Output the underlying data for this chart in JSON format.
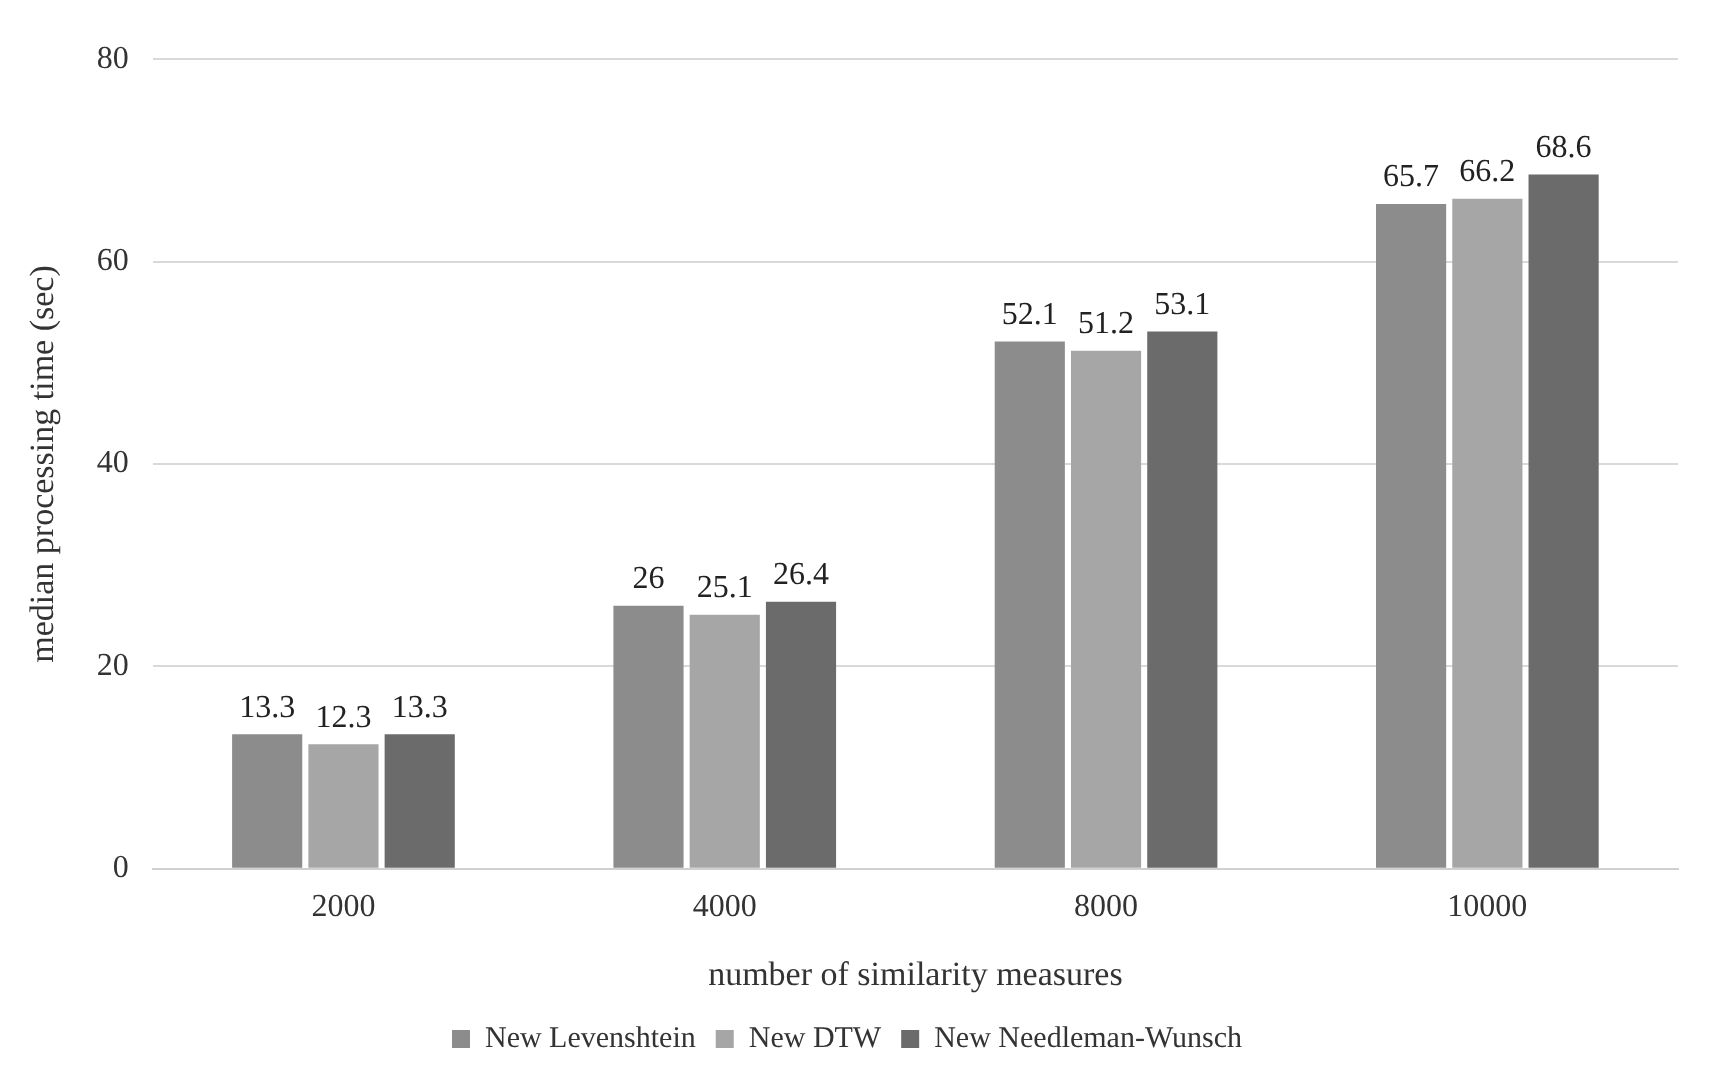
{
  "chart_data": {
    "type": "bar",
    "xlabel": "number of similarity measures",
    "ylabel": "median processing time (sec)",
    "categories": [
      "2000",
      "4000",
      "8000",
      "10000"
    ],
    "series": [
      {
        "name": "New Levenshtein",
        "color": "#8c8c8c",
        "values": [
          13.3,
          26,
          52.1,
          65.7
        ]
      },
      {
        "name": "New DTW",
        "color": "#a6a6a6",
        "values": [
          12.3,
          25.1,
          51.2,
          66.2
        ]
      },
      {
        "name": "New Needleman-Wunsch",
        "color": "#6b6b6b",
        "values": [
          13.3,
          26.4,
          53.1,
          68.6
        ]
      }
    ],
    "ylim": [
      0,
      80
    ],
    "yticks": [
      0,
      20,
      40,
      60,
      80
    ],
    "grid": "y",
    "legend": "bottom",
    "data_labels": true
  }
}
